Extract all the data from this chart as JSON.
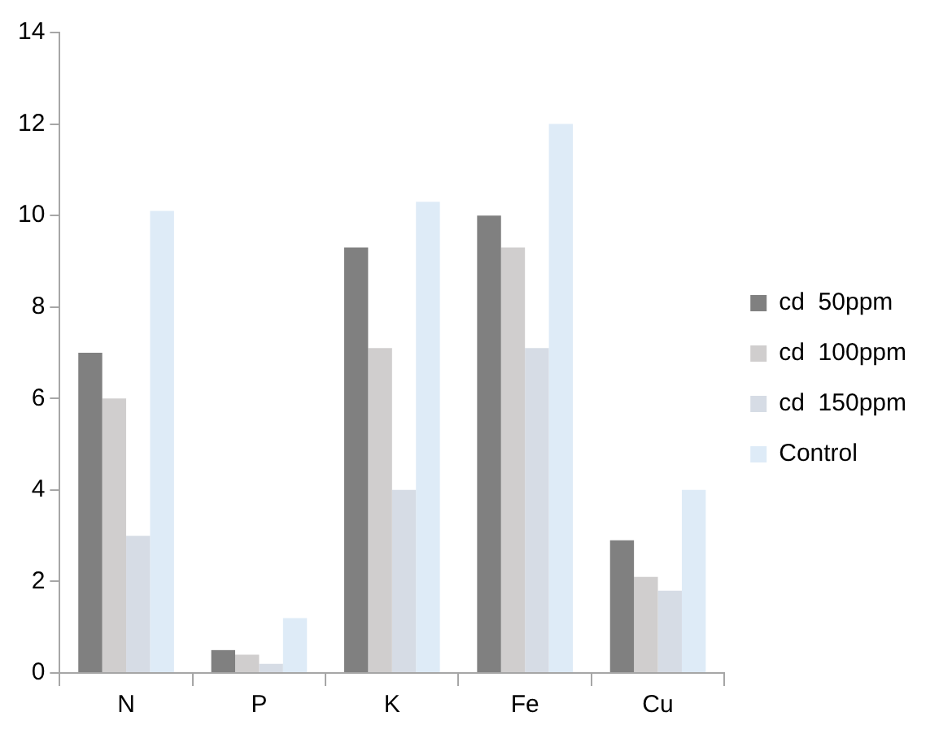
{
  "chart_data": {
    "type": "bar",
    "categories": [
      "N",
      "P",
      "K",
      "Fe",
      "Cu"
    ],
    "series": [
      {
        "name": "cd  50ppm",
        "color": "#808080",
        "values": [
          7,
          0.5,
          9.3,
          10,
          2.9
        ]
      },
      {
        "name": "cd  100ppm",
        "color": "#d0cece",
        "values": [
          6,
          0.4,
          7.1,
          9.3,
          2.1
        ]
      },
      {
        "name": "cd  150ppm",
        "color": "#d6dce5",
        "values": [
          3,
          0.2,
          4,
          7.1,
          1.8
        ]
      },
      {
        "name": "Control",
        "color": "#deebf7",
        "values": [
          10.1,
          1.2,
          10.3,
          12,
          4
        ]
      }
    ],
    "ylim": [
      0,
      14
    ],
    "yticks": [
      0,
      2,
      4,
      6,
      8,
      10,
      12,
      14
    ],
    "grid": false,
    "legend": "right"
  }
}
